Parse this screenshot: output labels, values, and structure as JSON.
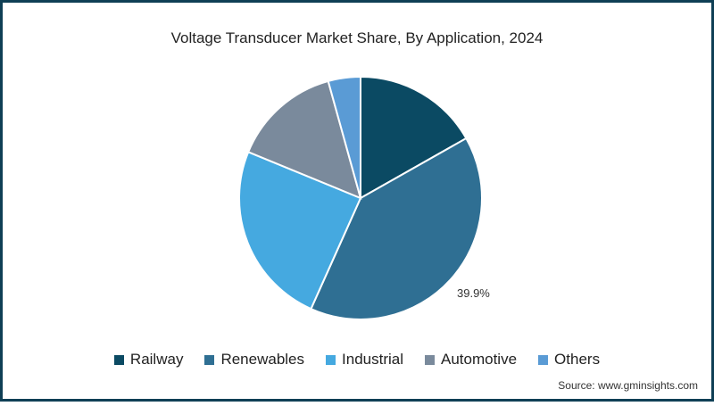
{
  "chart_data": {
    "type": "pie",
    "title": "Voltage Transducer Market Share, By Application, 2024",
    "categories": [
      "Railway",
      "Renewables",
      "Industrial",
      "Automotive",
      "Others"
    ],
    "values": [
      16.8,
      39.9,
      24.5,
      14.5,
      4.3
    ],
    "unit": "%",
    "colors": [
      "#0b4a63",
      "#2f6f93",
      "#45a9e0",
      "#7a8a9c",
      "#5a9bd5"
    ],
    "data_labels": [
      {
        "category": "Renewables",
        "text": "39.9%"
      }
    ],
    "legend_position": "bottom",
    "start_angle": "12 o'clock, clockwise"
  },
  "header": {
    "title": "Voltage Transducer Market Share, By Application, 2024"
  },
  "legend": {
    "items": [
      {
        "label": "Railway",
        "color": "#0b4a63"
      },
      {
        "label": "Renewables",
        "color": "#2f6f93"
      },
      {
        "label": "Industrial",
        "color": "#45a9e0"
      },
      {
        "label": "Automotive",
        "color": "#7a8a9c"
      },
      {
        "label": "Others",
        "color": "#5a9bd5"
      }
    ]
  },
  "annotation": {
    "renewables_label": "39.9%"
  },
  "footer": {
    "source": "Source: www.gminsights.com"
  },
  "theme": {
    "border_color": "#0f3f55"
  }
}
